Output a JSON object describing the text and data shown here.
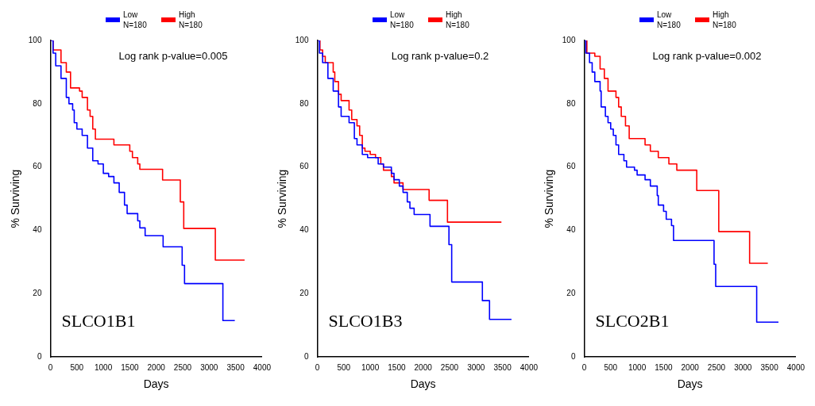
{
  "chart_data": [
    {
      "type": "step",
      "xlabel": "Days",
      "ylabel": "% Surviving",
      "annotations": [
        "Log rank p-value=0.005",
        "SLCO1B1"
      ],
      "xlim": [
        0,
        4000
      ],
      "xticks": [
        0,
        500,
        1000,
        1500,
        2000,
        2500,
        3000,
        3500,
        4000
      ],
      "ylim": [
        0,
        100
      ],
      "yticks": [
        0,
        20,
        40,
        60,
        80,
        100
      ],
      "grid": false,
      "legend": "top",
      "marker": "none",
      "line_style": "solid",
      "series": [
        {
          "name": "Low N=180",
          "color": "#0000ff",
          "x": [
            0,
            50,
            100,
            200,
            300,
            350,
            420,
            450,
            500,
            600,
            700,
            800,
            900,
            1000,
            1100,
            1200,
            1300,
            1400,
            1450,
            1650,
            1690,
            1790,
            2130,
            2490,
            2535,
            3260,
            3485
          ],
          "values": [
            100,
            96,
            92,
            88,
            82,
            80,
            78,
            74,
            72,
            70,
            66,
            62,
            61,
            58,
            57,
            55,
            52,
            48,
            45.3,
            43,
            40.8,
            38.3,
            34.8,
            29,
            23.2,
            11.5,
            11.5
          ]
        },
        {
          "name": "High N=180",
          "color": "#ff0000",
          "x": [
            0,
            50,
            200,
            300,
            380,
            550,
            600,
            700,
            750,
            800,
            850,
            1200,
            1500,
            1550,
            1650,
            1690,
            2120,
            2455,
            2520,
            3117,
            3670
          ],
          "values": [
            100,
            97,
            93,
            90,
            85,
            84,
            82,
            78,
            76,
            72,
            68.8,
            67,
            65,
            63,
            61,
            59.3,
            55.9,
            49,
            40.6,
            30.6,
            30.6
          ]
        }
      ]
    },
    {
      "type": "step",
      "xlabel": "Days",
      "ylabel": "% Surviving",
      "annotations": [
        "Log rank p-value=0.2",
        "SLCO1B3"
      ],
      "xlim": [
        0,
        4000
      ],
      "xticks": [
        0,
        500,
        1000,
        1500,
        2000,
        2500,
        3000,
        3500,
        4000
      ],
      "ylim": [
        0,
        100
      ],
      "yticks": [
        0,
        20,
        40,
        60,
        80,
        100
      ],
      "grid": false,
      "legend": "top",
      "marker": "none",
      "line_style": "solid",
      "series": [
        {
          "name": "Low N=180",
          "color": "#0000ff",
          "x": [
            0,
            40,
            100,
            200,
            300,
            400,
            450,
            600,
            700,
            750,
            850,
            950,
            1150,
            1250,
            1400,
            1450,
            1550,
            1620,
            1700,
            1750,
            1830,
            2130,
            2488,
            2540,
            3120,
            3255,
            3670
          ],
          "values": [
            100,
            96,
            93,
            88,
            84,
            79,
            76,
            74,
            69,
            67,
            64,
            63,
            61,
            60,
            58,
            56,
            54,
            52,
            49,
            47,
            45,
            41.3,
            35.5,
            23.7,
            17.8,
            11.9,
            11.9
          ]
        },
        {
          "name": "High N=180",
          "color": "#ff0000",
          "x": [
            0,
            50,
            100,
            150,
            300,
            330,
            400,
            450,
            600,
            650,
            750,
            800,
            850,
            900,
            1000,
            1100,
            1200,
            1250,
            1400,
            1450,
            1620,
            2113,
            2460,
            3480
          ],
          "values": [
            100,
            97,
            95,
            93,
            90,
            87,
            83,
            81,
            78,
            75,
            73,
            70,
            66,
            65,
            64,
            63,
            61,
            59,
            57,
            55,
            52.9,
            49.5,
            42.6,
            42.6
          ]
        }
      ]
    },
    {
      "type": "step",
      "xlabel": "Days",
      "ylabel": "% Surviving",
      "annotations": [
        "Log rank p-value=0.002",
        "SLCO2B1"
      ],
      "xlim": [
        0,
        4000
      ],
      "xticks": [
        0,
        500,
        1000,
        1500,
        2000,
        2500,
        3000,
        3500,
        4000
      ],
      "ylim": [
        0,
        100
      ],
      "yticks": [
        0,
        20,
        40,
        60,
        80,
        100
      ],
      "grid": false,
      "legend": "top",
      "marker": "none",
      "line_style": "solid",
      "series": [
        {
          "name": "Low N=180",
          "color": "#0000ff",
          "x": [
            0,
            30,
            100,
            150,
            200,
            300,
            320,
            400,
            450,
            500,
            550,
            600,
            650,
            750,
            800,
            950,
            1000,
            1150,
            1250,
            1380,
            1400,
            1500,
            1550,
            1650,
            1688,
            2454,
            2485,
            3260,
            3672
          ],
          "values": [
            100,
            96,
            93,
            90,
            87,
            84,
            79,
            76,
            74,
            72,
            70,
            67,
            64,
            62,
            60,
            59,
            57.5,
            56,
            54,
            51,
            48,
            46,
            43.5,
            41.5,
            36.8,
            29.3,
            22.3,
            11,
            11
          ]
        },
        {
          "name": "High N=180",
          "color": "#ff0000",
          "x": [
            0,
            50,
            200,
            300,
            380,
            450,
            600,
            650,
            700,
            780,
            850,
            1150,
            1250,
            1400,
            1600,
            1750,
            2127,
            2543,
            3126,
            3470
          ],
          "values": [
            100,
            96,
            95,
            91,
            88,
            84,
            82,
            79,
            76,
            73,
            69,
            67,
            65,
            63,
            61,
            59,
            52.6,
            39.6,
            29.6,
            29.6
          ]
        }
      ]
    }
  ]
}
